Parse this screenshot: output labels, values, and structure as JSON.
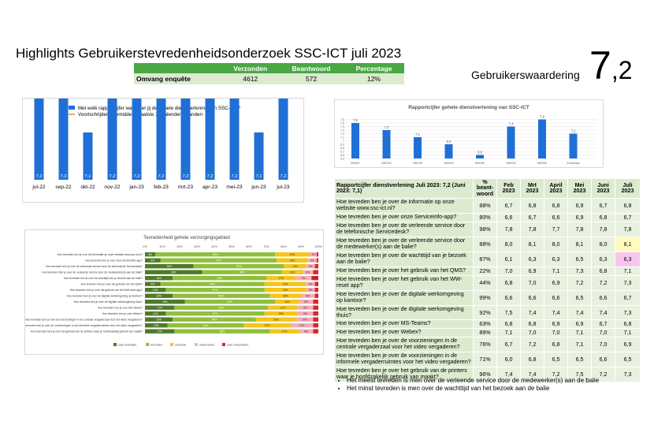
{
  "title": "Highlights Gebruikerstevredenheidsonderzoek SSC-ICT juli 2023",
  "summary": {
    "headers": [
      "",
      "Verzonden",
      "Beantwoord",
      "Percentage"
    ],
    "row": [
      "Omvang enquête",
      "4612",
      "572",
      "12%"
    ]
  },
  "user_rating": {
    "label": "Gebruikerswaardering",
    "whole": "7",
    "decimal": ",2"
  },
  "colors": {
    "green": "#4aa844",
    "green_light": "#dcebcf",
    "bar_blue": "#1f6fd6",
    "line_orange": "#ed7d31"
  },
  "chart_data": [
    {
      "type": "bar",
      "legend": [
        "Met welk rapportcijfer waardeer jij de gehele dienstverlening van SSC-ICT?",
        "Voortschrijdend gemiddelde laatste 12 kalender maanden"
      ],
      "categories": [
        "jul-22",
        "sep-22",
        "okt-22",
        "nov-22",
        "jan-23",
        "feb-23",
        "mrt-23",
        "apr-23",
        "mei-23",
        "jun-23",
        "jul-23"
      ],
      "values": [
        7.2,
        7.2,
        7.1,
        7.2,
        7.2,
        7.2,
        7.2,
        7.2,
        7.2,
        7.1,
        7.2
      ],
      "labels": [
        "7,2",
        "7,2",
        "7,1",
        "7,2",
        "7,2",
        "7,2",
        "7,2",
        "7,2",
        "7,2",
        "7,1",
        "7,2"
      ],
      "line_values": [
        7.2,
        7.2,
        7.2,
        7.2,
        7.2,
        7.2,
        7.2,
        7.2,
        7.2,
        7.2,
        7.2
      ],
      "line_labels": [
        "7,2",
        "7,2",
        "7,2",
        "7,2",
        "7,2",
        "7,2",
        "7,2",
        "7,2",
        "7,2",
        "7,2",
        "7,2"
      ]
    },
    {
      "type": "bar",
      "title": "Rapportcijfer gehele dienstverlening van SSC-ICT",
      "categories": [
        "MM067",
        "MM148",
        "MM196",
        "MM208",
        "MM280",
        "MM230",
        "MM265",
        "Eindtotaal"
      ],
      "values": [
        7.5,
        7.3,
        7.1,
        6.9,
        6.6,
        7.4,
        7.6,
        7.2
      ],
      "labels": [
        "7,5",
        "7,3",
        "7,1",
        "6,9",
        "6,6",
        "7,4",
        "7,6",
        "7,2"
      ],
      "yticks": [
        "7,6",
        "7,5",
        "7,4",
        "7,3",
        "7,2",
        "7,1",
        "7",
        "6,9",
        "6,8",
        "6,7",
        "6,6",
        "6,5"
      ],
      "ylim": [
        6.5,
        7.7
      ]
    },
    {
      "type": "bar",
      "stacked": true,
      "title": "Tevredenheid gehele verzorgingsgebied",
      "xticks": [
        "0%",
        "10%",
        "20%",
        "30%",
        "40%",
        "50%",
        "60%",
        "70%",
        "80%",
        "90%",
        "100%"
      ],
      "legend": [
        "zeer tevreden",
        "tevreden",
        "neutraal",
        "ontevreden",
        "zeer ontevreden"
      ],
      "colors": [
        "#4f7a28",
        "#8fbf3c",
        "#f5c518",
        "#f4b0b8",
        "#d9262e"
      ],
      "categories": [
        "Hoe tevreden ben je over de informatie op onze website www.ssc-ict.nl?",
        "Hoe tevreden ben je over onze Serviceinfo-app?",
        "Hoe tevreden ben je over de verleende service door de telefonische Servicedesk?",
        "Hoe tevreden ben je over de verleende service door de medewerker(s) aan de balie?",
        "Hoe tevreden ben je over de wachttijd van je bezoek aan de balie?",
        "Hoe tevreden ben je over het gebruik van het QMS?",
        "Hoe tevreden ben je over het gebruik van het WW-reset app?",
        "Hoe tevreden ben je over de digitale werkomgeving op kantoor?",
        "Hoe tevreden ben je over de digitale werkomgeving thuis?",
        "Hoe tevreden ben je over MS-Teams?",
        "Hoe tevreden ben je over Webex?",
        "Hoe tevreden ben je over de voorzieningen in de centrale vergaderzaal voor het video vergaderen?",
        "Hoe tevreden ben je over de voorzieningen in de informele vergaderruimtes voor het video vergaderen?",
        "Hoe tevreden ben je over het gebruik van de printers waar je hoofdzakelijk gebruik van maakt?"
      ],
      "series": [
        {
          "name": "zeer tevreden",
          "values": [
            6,
            9,
            28,
            33,
            16,
            9,
            12,
            16,
            23,
            17,
            12,
            16,
            13,
            17
          ]
        },
        {
          "name": "tevreden",
          "values": [
            69,
            67,
            52,
            46,
            54,
            60,
            57,
            56,
            52,
            54,
            57,
            48,
            44,
            55
          ]
        },
        {
          "name": "neutraal",
          "values": [
            20,
            18,
            13,
            12,
            17,
            24,
            24,
            18,
            14,
            17,
            19,
            23,
            27,
            17
          ]
        },
        {
          "name": "ontevreden",
          "values": [
            4,
            5,
            5,
            6,
            9,
            5,
            5,
            8,
            8,
            9,
            9,
            10,
            13,
            8
          ]
        },
        {
          "name": "zeer ontevreden",
          "values": [
            1,
            1,
            2,
            3,
            4,
            2,
            2,
            2,
            3,
            3,
            3,
            3,
            3,
            3
          ]
        }
      ],
      "segment_labels": [
        [
          "6%",
          "69%",
          "20%",
          "4%",
          ""
        ],
        [
          "9%",
          "67%",
          "18%",
          "5%",
          ""
        ],
        [
          "28%",
          "52%",
          "13%",
          "5%",
          ""
        ],
        [
          "33%",
          "46%",
          "12%",
          "6%",
          ""
        ],
        [
          "16%",
          "54%",
          "17%",
          "9%",
          "4%"
        ],
        [
          "9%",
          "60%",
          "24%",
          "5%",
          ""
        ],
        [
          "12%",
          "57%",
          "24%",
          "5%",
          ""
        ],
        [
          "16%",
          "56%",
          "18%",
          "8%",
          ""
        ],
        [
          "23%",
          "52%",
          "14%",
          "8%",
          ""
        ],
        [
          "17%",
          "54%",
          "17%",
          "9%",
          ""
        ],
        [
          "12%",
          "57%",
          "19%",
          "9%",
          ""
        ],
        [
          "16%",
          "48%",
          "23%",
          "10%",
          ""
        ],
        [
          "13%",
          "44%",
          "27%",
          "13%",
          ""
        ],
        [
          "17%",
          "55%",
          "17%",
          "8%",
          ""
        ]
      ],
      "xlim": [
        0,
        100
      ]
    }
  ],
  "table": {
    "header_question": "Rapportcijfer dienstverlening  Juli 2023: 7,2 (Juni 2023: 7,1)",
    "header_pct": "% beant-woord",
    "months": [
      "Feb 2023",
      "Mrt 2023",
      "April 2023",
      "Mei 2023",
      "Juni 2023",
      "Juli 2023"
    ],
    "rows": [
      {
        "q": "Hoe tevreden ben je over de informatie op onze website www.ssc-ict.nl?",
        "pct": "88%",
        "v": [
          "6,7",
          "6,8",
          "6,8",
          "6,9",
          "6,7",
          "6,8"
        ]
      },
      {
        "q": "Hoe tevreden ben je over onze Serviceinfo-app?",
        "pct": "80%",
        "v": [
          "6,6",
          "6,7",
          "6,6",
          "6,9",
          "6,8",
          "6,7"
        ]
      },
      {
        "q": "Hoe tevreden ben je over de verleende service door de telefonische Servicedesk?",
        "pct": "98%",
        "v": [
          "7,8",
          "7,8",
          "7,7",
          "7,8",
          "7,8",
          "7,8"
        ]
      },
      {
        "q": "Hoe tevreden ben je over de verleende service door de medewerker(s) aan de balie?",
        "pct": "88%",
        "v": [
          "8,0",
          "8,1",
          "8,0",
          "8,1",
          "8,0",
          "8,1"
        ]
      },
      {
        "q": "Hoe tevreden ben je over de wachttijd van je bezoek aan de balie?",
        "pct": "87%",
        "v": [
          "6,1",
          "6,3",
          "6,3",
          "6,5",
          "6,3",
          "6,3"
        ]
      },
      {
        "q": "Hoe tevreden ben je over het gebruik van het QMS?",
        "pct": "22%",
        "v": [
          "7,0",
          "6,9",
          "7,1",
          "7,3",
          "6,8",
          "7,1"
        ]
      },
      {
        "q": "Hoe tevreden ben je over het gebruik van het WW-reset app?",
        "pct": "44%",
        "v": [
          "6,8",
          "7,0",
          "6,9",
          "7,2",
          "7,2",
          "7,3"
        ]
      },
      {
        "q": "Hoe tevreden ben je over de digitale werkomgeving op kantoor?",
        "pct": "99%",
        "v": [
          "6,6",
          "6,6",
          "6,6",
          "6,5",
          "6,6",
          "6,7"
        ]
      },
      {
        "q": "Hoe tevreden ben je over de digitale werkomgeving thuis?",
        "pct": "92%",
        "v": [
          "7,5",
          "7,4",
          "7,4",
          "7,4",
          "7,4",
          "7,3"
        ]
      },
      {
        "q": "Hoe tevreden ben je over MS-Teams?",
        "pct": "63%",
        "v": [
          "6,8",
          "6,8",
          "6,9",
          "6,9",
          "6,7",
          "6,8"
        ]
      },
      {
        "q": "Hoe tevreden ben je over Webex?",
        "pct": "89%",
        "v": [
          "7,1",
          "7,0",
          "7,0",
          "7,1",
          "7,0",
          "7,1"
        ]
      },
      {
        "q": "Hoe tevreden ben je over de voorzieningen in de centrale vergaderzaal voor het video vergaderen?",
        "pct": "76%",
        "v": [
          "6,7",
          "7,2",
          "6,8",
          "7,1",
          "7,0",
          "6,9"
        ]
      },
      {
        "q": "Hoe tevreden ben je over de voorzieningen in de informele vergaderruimtes voor het video vergaderen?",
        "pct": "71%",
        "v": [
          "6,0",
          "6,8",
          "6,5",
          "6,5",
          "6,6",
          "6,5"
        ]
      },
      {
        "q": "Hoe tevreden ben je over het gebruik van de printers waar je hoofdzakelijk gebruik van maakt?",
        "pct": "96%",
        "v": [
          "7,4",
          "7,4",
          "7,2",
          "7,5",
          "7,2",
          "7,3"
        ]
      }
    ]
  },
  "bullets": [
    "Het meest tevreden is men over de verleende service door de medewerker(s) aan de balie",
    "Het minst tevreden is men over de wachttijd van het bezoek aan de balie"
  ]
}
